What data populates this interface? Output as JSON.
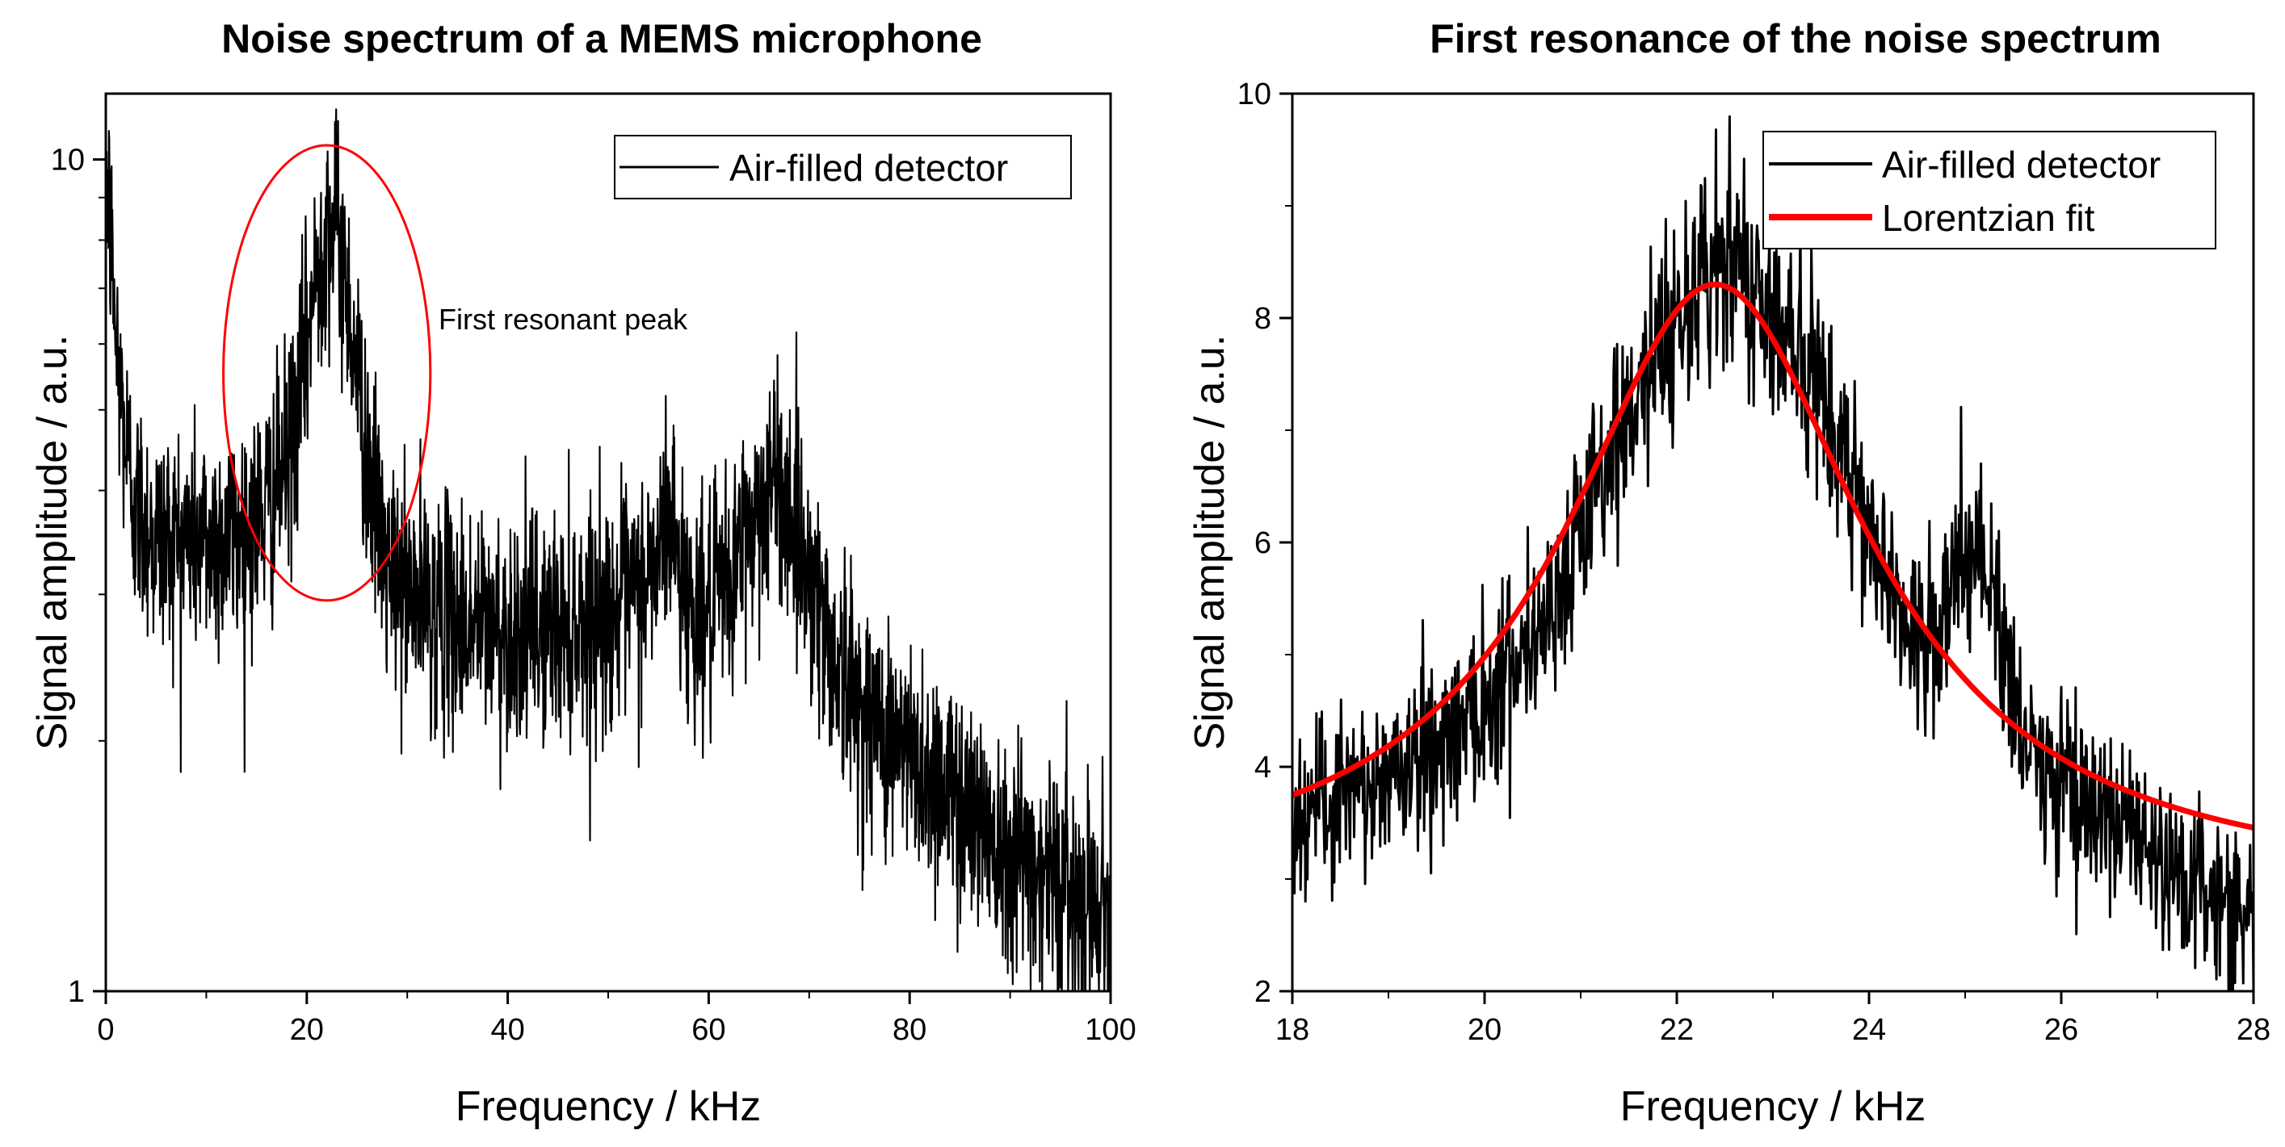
{
  "chart_data": [
    {
      "type": "line",
      "title": "Noise spectrum of a MEMS microphone",
      "xlabel": "Frequency / kHz",
      "ylabel": "Signal amplitude / a.u.",
      "xlim": [
        0,
        100
      ],
      "ylim": [
        1,
        12
      ],
      "yscale": "log",
      "grid": false,
      "legend": "top-right",
      "x_ticks": [
        0,
        20,
        40,
        60,
        80,
        100
      ],
      "x_tick_labels": [
        "0",
        "20",
        "40",
        "60",
        "80",
        "100"
      ],
      "y_ticks": [
        1,
        10
      ],
      "y_tick_labels": [
        "1",
        "10"
      ],
      "series": [
        {
          "name": "Air-filled detector",
          "color": "#000000",
          "x": [
            0,
            1,
            2,
            3,
            5,
            8,
            10,
            12,
            14,
            16,
            18,
            19,
            20,
            21,
            22,
            23,
            24,
            25,
            26,
            27,
            28,
            30,
            35,
            40,
            45,
            50,
            53,
            55,
            56,
            57,
            58,
            60,
            62,
            64,
            66,
            67,
            68,
            70,
            72,
            75,
            80,
            85,
            90,
            95,
            100
          ],
          "values": [
            10,
            6.0,
            4.5,
            3.8,
            3.5,
            3.5,
            3.5,
            3.5,
            3.6,
            3.8,
            4.3,
            5.0,
            6.0,
            7.3,
            8.5,
            8.2,
            7.0,
            5.5,
            4.4,
            3.7,
            3.2,
            3.0,
            2.8,
            2.7,
            2.75,
            2.85,
            3.0,
            3.3,
            3.8,
            3.3,
            2.9,
            2.8,
            3.1,
            3.6,
            4.0,
            4.1,
            3.8,
            3.2,
            2.6,
            2.2,
            1.9,
            1.7,
            1.5,
            1.35,
            1.25
          ],
          "noise": 0.16
        }
      ],
      "annotation": {
        "text": "First resonant peak",
        "color": "#ff0000",
        "ellipse": {
          "x_center": 22,
          "y_center": 4.6,
          "x_halfwidth": 10.3,
          "y_top": 10.4,
          "y_bottom": 2.95
        }
      }
    },
    {
      "type": "line",
      "title": "First resonance of the noise spectrum",
      "xlabel": "Frequency / kHz",
      "ylabel": "Signal amplitude / a.u.",
      "xlim": [
        18,
        28
      ],
      "ylim": [
        2,
        10
      ],
      "grid": false,
      "legend": "top-right",
      "x_ticks": [
        18,
        20,
        22,
        24,
        26,
        28
      ],
      "x_tick_labels": [
        "18",
        "20",
        "22",
        "24",
        "26",
        "28"
      ],
      "y_ticks": [
        2,
        4,
        6,
        8,
        10
      ],
      "y_tick_labels": [
        "2",
        "4",
        "6",
        "8",
        "10"
      ],
      "series": [
        {
          "name": "Air-filled detector",
          "color": "#000000",
          "x": [
            18,
            18.5,
            19,
            19.5,
            20,
            20.5,
            21,
            21.5,
            22,
            22.3,
            22.6,
            23,
            23.5,
            24,
            24.5,
            24.8,
            25,
            25.3,
            25.6,
            26,
            26.5,
            27,
            27.5,
            28
          ],
          "values": [
            3.5,
            3.7,
            3.9,
            4.2,
            4.6,
            5.2,
            6.0,
            7.2,
            8.0,
            8.4,
            8.5,
            8.1,
            7.3,
            6.2,
            5.0,
            5.3,
            6.0,
            5.5,
            4.2,
            3.9,
            3.5,
            3.1,
            2.9,
            2.7
          ],
          "noise": 0.5
        },
        {
          "name": "Lorentzian fit",
          "color": "#ff0000",
          "model": "lorentzian",
          "baseline": 2.9,
          "amplitude": 5.4,
          "center": 22.4,
          "hwhm": 1.9
        }
      ]
    }
  ]
}
